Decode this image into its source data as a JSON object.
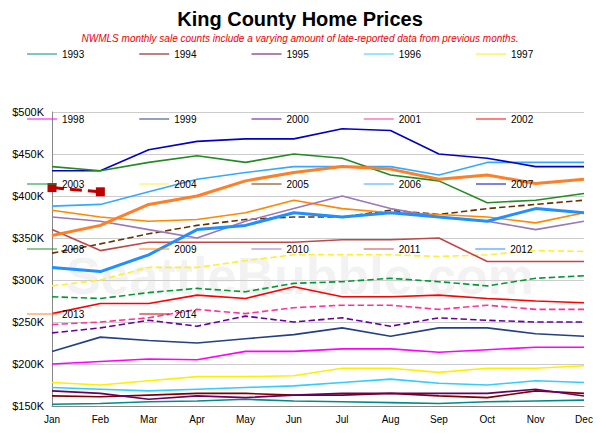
{
  "chart_data": {
    "type": "line",
    "title": "King County Home Prices",
    "subtitle": "NWMLS monthly sale counts include a varying amount of late-reported data from previous months.",
    "annotations": [
      "SeattleBubble.com"
    ],
    "categories": [
      "Jan",
      "Feb",
      "Mar",
      "Apr",
      "May",
      "Jun",
      "Jul",
      "Aug",
      "Sep",
      "Oct",
      "Nov",
      "Dec"
    ],
    "ylim": [
      150000,
      500000
    ],
    "yticks": [
      {
        "value": 150000,
        "label": "$150K"
      },
      {
        "value": 200000,
        "label": "$200K"
      },
      {
        "value": 250000,
        "label": "$250K"
      },
      {
        "value": 300000,
        "label": "$300K"
      },
      {
        "value": 350000,
        "label": "$350K"
      },
      {
        "value": 400000,
        "label": "$400K"
      },
      {
        "value": 450000,
        "label": "$450K"
      },
      {
        "value": 500000,
        "label": "$500K"
      }
    ],
    "grid": true,
    "legend": "top",
    "series": [
      {
        "name": "1993",
        "color": "#008b8b",
        "line_style": "solid",
        "marker": "none",
        "values": [
          152000,
          153000,
          155000,
          156000,
          158000,
          156000,
          155000,
          154000,
          153000,
          155000,
          156000,
          157000
        ]
      },
      {
        "name": "1994",
        "color": "#800000",
        "line_style": "solid",
        "marker": "none",
        "values": [
          162000,
          161000,
          163000,
          165000,
          165000,
          163000,
          163000,
          165000,
          162000,
          160000,
          168000,
          165000
        ]
      },
      {
        "name": "1995",
        "color": "#660066",
        "line_style": "solid",
        "marker": "none",
        "values": [
          168000,
          165000,
          158000,
          162000,
          160000,
          163000,
          165000,
          165000,
          165000,
          165000,
          170000,
          162000
        ]
      },
      {
        "name": "1996",
        "color": "#33ccff",
        "line_style": "solid",
        "marker": "none",
        "values": [
          172000,
          170000,
          168000,
          170000,
          172000,
          174000,
          178000,
          182000,
          177000,
          175000,
          180000,
          178000
        ]
      },
      {
        "name": "1997",
        "color": "#ffee00",
        "line_style": "solid",
        "marker": "none",
        "values": [
          178000,
          175000,
          180000,
          185000,
          185000,
          186000,
          195000,
          195000,
          190000,
          195000,
          195000,
          198000
        ]
      },
      {
        "name": "1998",
        "color": "#ff00ff",
        "line_style": "solid",
        "marker": "none",
        "values": [
          200000,
          203000,
          206000,
          205000,
          215000,
          215000,
          218000,
          218000,
          214000,
          217000,
          220000,
          220000
        ]
      },
      {
        "name": "1999",
        "color": "#244185",
        "line_style": "solid",
        "marker": "none",
        "values": [
          215000,
          232000,
          228000,
          225000,
          230000,
          235000,
          243000,
          233000,
          243000,
          243000,
          236000,
          233000
        ]
      },
      {
        "name": "2000",
        "color": "#660099",
        "line_style": "dashed",
        "marker": "none",
        "values": [
          237000,
          243000,
          252000,
          245000,
          257000,
          250000,
          255000,
          245000,
          255000,
          252000,
          250000,
          250000
        ]
      },
      {
        "name": "2001",
        "color": "#ff3399",
        "line_style": "dashed",
        "marker": "none",
        "values": [
          247000,
          250000,
          255000,
          265000,
          260000,
          267000,
          270000,
          270000,
          265000,
          270000,
          265000,
          265000
        ]
      },
      {
        "name": "2002",
        "color": "#ff0000",
        "line_style": "solid",
        "marker": "none",
        "values": [
          260000,
          272000,
          272000,
          282000,
          278000,
          292000,
          280000,
          280000,
          282000,
          278000,
          275000,
          273000
        ]
      },
      {
        "name": "2003",
        "color": "#009933",
        "line_style": "dashed",
        "marker": "none",
        "values": [
          280000,
          278000,
          285000,
          290000,
          286000,
          296000,
          298000,
          302000,
          298000,
          293000,
          302000,
          305000
        ]
      },
      {
        "name": "2004",
        "color": "#ffee33",
        "line_style": "dashed",
        "marker": "none",
        "values": [
          293000,
          300000,
          315000,
          315000,
          323000,
          330000,
          330000,
          330000,
          328000,
          330000,
          335000,
          334000
        ]
      },
      {
        "name": "2005",
        "color": "#663300",
        "line_style": "dashed",
        "marker": "none",
        "values": [
          332000,
          343000,
          355000,
          365000,
          372000,
          375000,
          375000,
          383000,
          378000,
          385000,
          390000,
          395000
        ]
      },
      {
        "name": "2006",
        "color": "#33aaff",
        "line_style": "solid",
        "marker": "none",
        "values": [
          388000,
          390000,
          405000,
          420000,
          428000,
          435000,
          435000,
          435000,
          425000,
          440000,
          440000,
          440000
        ]
      },
      {
        "name": "2007",
        "color": "#0000cc",
        "line_style": "solid",
        "marker": "none",
        "values": [
          430000,
          430000,
          455000,
          465000,
          468000,
          468000,
          480000,
          478000,
          450000,
          445000,
          435000,
          435000
        ]
      },
      {
        "name": "2008",
        "color": "#228b22",
        "line_style": "solid",
        "marker": "none",
        "values": [
          435000,
          430000,
          440000,
          448000,
          440000,
          450000,
          445000,
          425000,
          418000,
          392000,
          395000,
          403000
        ]
      },
      {
        "name": "2009",
        "color": "#ff8800",
        "line_style": "solid",
        "marker": "none",
        "values": [
          383000,
          375000,
          370000,
          372000,
          380000,
          395000,
          385000,
          380000,
          378000,
          375000,
          368000,
          380000
        ]
      },
      {
        "name": "2010",
        "color": "#9977bb",
        "line_style": "solid",
        "marker": "none",
        "values": [
          375000,
          370000,
          360000,
          350000,
          370000,
          385000,
          400000,
          385000,
          375000,
          370000,
          360000,
          370000
        ]
      },
      {
        "name": "2011",
        "color": "#c04848",
        "line_style": "solid",
        "marker": "none",
        "values": [
          360000,
          335000,
          345000,
          345000,
          345000,
          345000,
          348000,
          348000,
          350000,
          322000,
          322000,
          322000
        ]
      },
      {
        "name": "2012",
        "color": "#1e90ff",
        "line_style": "solid",
        "marker": "none",
        "values": [
          315000,
          310000,
          330000,
          360000,
          365000,
          380000,
          375000,
          380000,
          375000,
          370000,
          385000,
          380000
        ]
      },
      {
        "name": "2013",
        "color": "#ff7f27",
        "line_style": "solid",
        "marker": "none",
        "values": [
          353000,
          365000,
          390000,
          400000,
          418000,
          428000,
          435000,
          432000,
          420000,
          425000,
          415000,
          420000
        ]
      },
      {
        "name": "2014",
        "color": "#c00000",
        "line_style": "dashed",
        "marker": "square",
        "values": [
          410000,
          405000,
          null,
          null,
          null,
          null,
          null,
          null,
          null,
          null,
          null,
          null
        ]
      }
    ]
  }
}
